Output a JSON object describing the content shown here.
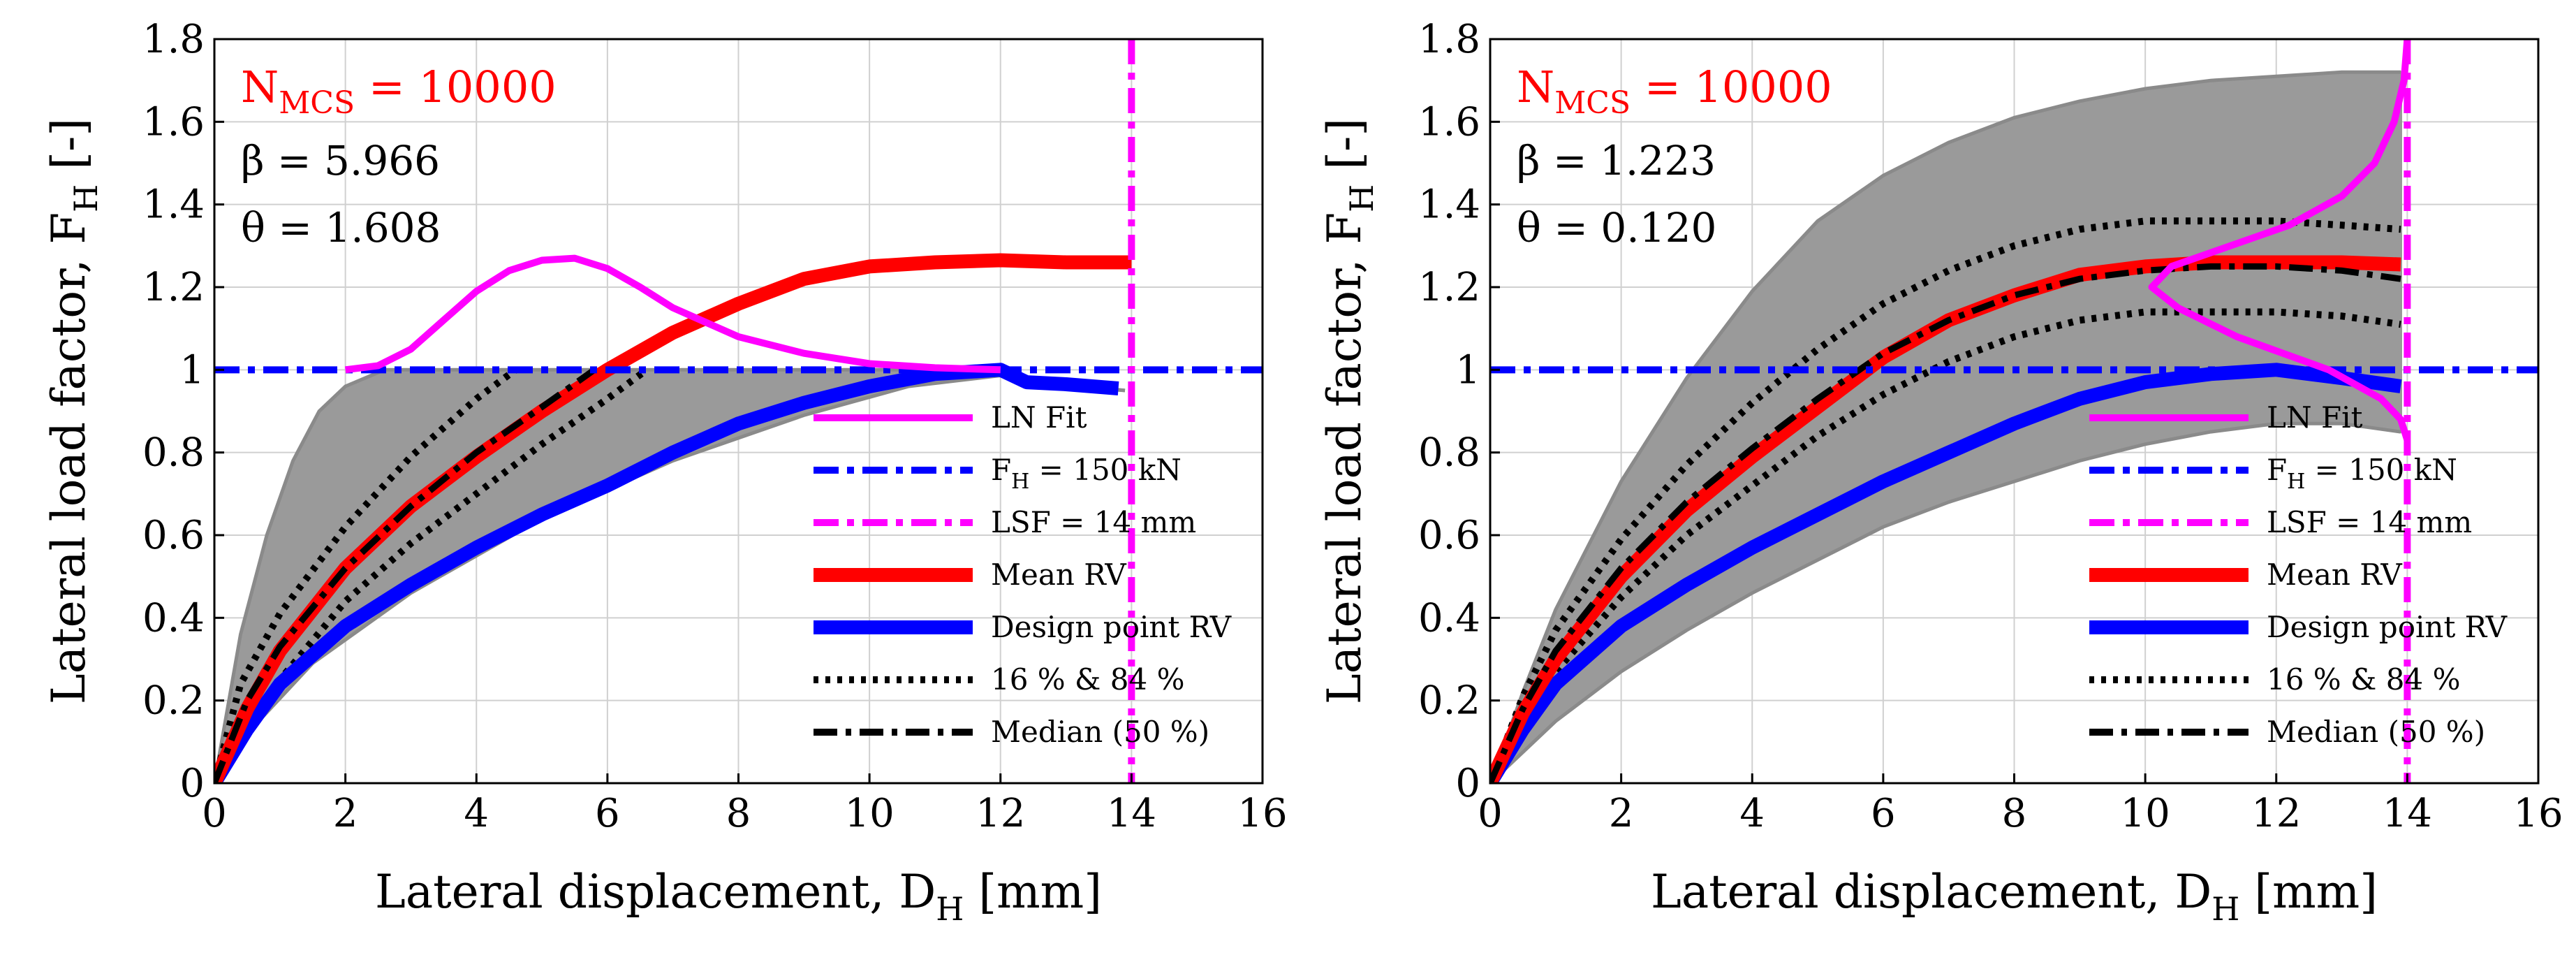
{
  "figure": {
    "subscript_H": "H",
    "subscript_MCS": "MCS"
  },
  "colors": {
    "mean": "#ff0000",
    "design": "#0000ff",
    "lnfit": "#ff00ff",
    "percentile": "#000000",
    "samples": "#9a9a9a",
    "grid": "#d0d0d0",
    "annotation": "#ff0000"
  },
  "chart_data": [
    {
      "type": "line",
      "panel": "left",
      "xlabel_main": "Lateral displacement, D",
      "xlabel_sub": "H",
      "xlabel_unit": " [mm]",
      "ylabel_main": "Lateral load factor, F",
      "ylabel_sub": "H",
      "ylabel_unit": " [-]",
      "xlim": [
        0,
        16
      ],
      "ylim": [
        0,
        1.8
      ],
      "xticks": [
        "0",
        "2",
        "4",
        "6",
        "8",
        "10",
        "12",
        "14",
        "16"
      ],
      "yticks": [
        "0",
        "0.2",
        "0.4",
        "0.6",
        "0.8",
        "1",
        "1.2",
        "1.4",
        "1.6",
        "1.8"
      ],
      "grid": true,
      "annotations": {
        "nmcs_main": "N",
        "nmcs_sub": "MCS",
        "nmcs_value": " = 10000",
        "beta": "β = 5.966",
        "theta": "θ = 1.608"
      },
      "legend": [
        {
          "key": "lnfit",
          "label": "LN Fit"
        },
        {
          "key": "fh",
          "label": "F",
          "sub": "H",
          "rest": " = 150 kN"
        },
        {
          "key": "lsf",
          "label": "LSF = 14 mm"
        },
        {
          "key": "mean",
          "label": "Mean RV"
        },
        {
          "key": "design",
          "label": "Design point RV"
        },
        {
          "key": "p1684",
          "label": "16 % & 84 %"
        },
        {
          "key": "median",
          "label": "Median (50 %)"
        }
      ],
      "reference_lines": {
        "fh": 1.0,
        "lsf": 14
      },
      "sample_band": {
        "upper": [
          [
            0,
            0
          ],
          [
            0.4,
            0.36
          ],
          [
            0.8,
            0.6
          ],
          [
            1.2,
            0.78
          ],
          [
            1.6,
            0.9
          ],
          [
            2.0,
            0.96
          ],
          [
            2.6,
            1.0
          ],
          [
            11,
            1.0
          ],
          [
            12,
            1.0
          ],
          [
            12.4,
            0.97
          ],
          [
            13.3,
            0.96
          ],
          [
            13.9,
            0.95
          ]
        ],
        "lower": [
          [
            13.9,
            0.95
          ],
          [
            13,
            0.96
          ],
          [
            12.2,
            0.99
          ],
          [
            10.6,
            0.96
          ],
          [
            9,
            0.89
          ],
          [
            7,
            0.78
          ],
          [
            5,
            0.64
          ],
          [
            3,
            0.46
          ],
          [
            1.5,
            0.29
          ],
          [
            0.5,
            0.12
          ],
          [
            0,
            0
          ]
        ]
      },
      "series": {
        "mean": [
          [
            0,
            0
          ],
          [
            0.5,
            0.18
          ],
          [
            1,
            0.32
          ],
          [
            2,
            0.52
          ],
          [
            3,
            0.67
          ],
          [
            4,
            0.79
          ],
          [
            5,
            0.9
          ],
          [
            6,
            1.0
          ],
          [
            7,
            1.09
          ],
          [
            8,
            1.16
          ],
          [
            9,
            1.22
          ],
          [
            10,
            1.25
          ],
          [
            11,
            1.26
          ],
          [
            12,
            1.265
          ],
          [
            13,
            1.26
          ],
          [
            14,
            1.26
          ]
        ],
        "design": [
          [
            0,
            0
          ],
          [
            0.5,
            0.13
          ],
          [
            1,
            0.24
          ],
          [
            2,
            0.38
          ],
          [
            3,
            0.48
          ],
          [
            4,
            0.57
          ],
          [
            5,
            0.65
          ],
          [
            6,
            0.72
          ],
          [
            7,
            0.8
          ],
          [
            8,
            0.87
          ],
          [
            9,
            0.92
          ],
          [
            10,
            0.96
          ],
          [
            11,
            0.99
          ],
          [
            12,
            1.0
          ],
          [
            12.4,
            0.97
          ],
          [
            13,
            0.965
          ],
          [
            13.8,
            0.955
          ]
        ],
        "median": [
          [
            0,
            0
          ],
          [
            0.5,
            0.2
          ],
          [
            1,
            0.33
          ],
          [
            2,
            0.52
          ],
          [
            3,
            0.67
          ],
          [
            4,
            0.8
          ],
          [
            5,
            0.91
          ],
          [
            5.8,
            1.0
          ]
        ],
        "p16": [
          [
            0,
            0
          ],
          [
            0.6,
            0.16
          ],
          [
            1,
            0.25
          ],
          [
            2,
            0.44
          ],
          [
            3,
            0.58
          ],
          [
            4,
            0.7
          ],
          [
            5,
            0.82
          ],
          [
            6,
            0.93
          ],
          [
            6.6,
            1.0
          ]
        ],
        "p84": [
          [
            0,
            0
          ],
          [
            0.4,
            0.24
          ],
          [
            1,
            0.41
          ],
          [
            2,
            0.62
          ],
          [
            3,
            0.79
          ],
          [
            4,
            0.93
          ],
          [
            4.6,
            1.0
          ]
        ],
        "lnfit": [
          [
            2,
            1.0
          ],
          [
            2.5,
            1.01
          ],
          [
            3,
            1.05
          ],
          [
            3.5,
            1.12
          ],
          [
            4,
            1.19
          ],
          [
            4.5,
            1.24
          ],
          [
            5,
            1.265
          ],
          [
            5.5,
            1.27
          ],
          [
            6,
            1.245
          ],
          [
            6.5,
            1.2
          ],
          [
            7,
            1.15
          ],
          [
            8,
            1.08
          ],
          [
            9,
            1.04
          ],
          [
            10,
            1.015
          ],
          [
            11,
            1.005
          ],
          [
            12,
            1.0
          ]
        ]
      }
    },
    {
      "type": "line",
      "panel": "right",
      "xlabel_main": "Lateral displacement, D",
      "xlabel_sub": "H",
      "xlabel_unit": " [mm]",
      "ylabel_main": "Lateral load factor, F",
      "ylabel_sub": "H",
      "ylabel_unit": " [-]",
      "xlim": [
        0,
        16
      ],
      "ylim": [
        0,
        1.8
      ],
      "xticks": [
        "0",
        "2",
        "4",
        "6",
        "8",
        "10",
        "12",
        "14",
        "16"
      ],
      "yticks": [
        "0",
        "0.2",
        "0.4",
        "0.6",
        "0.8",
        "1",
        "1.2",
        "1.4",
        "1.6",
        "1.8"
      ],
      "grid": true,
      "annotations": {
        "nmcs_main": "N",
        "nmcs_sub": "MCS",
        "nmcs_value": " = 10000",
        "beta": "β = 1.223",
        "theta": "θ = 0.120"
      },
      "legend": [
        {
          "key": "lnfit",
          "label": "LN Fit"
        },
        {
          "key": "fh",
          "label": "F",
          "sub": "H",
          "rest": " = 150 kN"
        },
        {
          "key": "lsf",
          "label": "LSF = 14 mm"
        },
        {
          "key": "mean",
          "label": "Mean RV"
        },
        {
          "key": "design",
          "label": "Design point RV"
        },
        {
          "key": "p1684",
          "label": "16 % & 84 %"
        },
        {
          "key": "median",
          "label": "Median (50 %)"
        }
      ],
      "reference_lines": {
        "fh": 1.0,
        "lsf": 14
      },
      "sample_band": {
        "upper": [
          [
            0,
            0
          ],
          [
            0.5,
            0.22
          ],
          [
            1,
            0.42
          ],
          [
            2,
            0.73
          ],
          [
            3,
            0.98
          ],
          [
            4,
            1.19
          ],
          [
            5,
            1.36
          ],
          [
            6,
            1.47
          ],
          [
            7,
            1.55
          ],
          [
            8,
            1.61
          ],
          [
            9,
            1.65
          ],
          [
            10,
            1.68
          ],
          [
            11,
            1.7
          ],
          [
            12,
            1.71
          ],
          [
            13,
            1.72
          ],
          [
            13.9,
            1.72
          ]
        ],
        "lower": [
          [
            13.9,
            0.85
          ],
          [
            13,
            0.87
          ],
          [
            12,
            0.87
          ],
          [
            11,
            0.85
          ],
          [
            10,
            0.82
          ],
          [
            9,
            0.78
          ],
          [
            8,
            0.73
          ],
          [
            7,
            0.68
          ],
          [
            6,
            0.62
          ],
          [
            5,
            0.54
          ],
          [
            4,
            0.46
          ],
          [
            3,
            0.37
          ],
          [
            2,
            0.27
          ],
          [
            1,
            0.15
          ],
          [
            0,
            0
          ]
        ]
      },
      "series": {
        "mean": [
          [
            0,
            0
          ],
          [
            0.5,
            0.17
          ],
          [
            1,
            0.3
          ],
          [
            2,
            0.5
          ],
          [
            3,
            0.66
          ],
          [
            4,
            0.79
          ],
          [
            5,
            0.91
          ],
          [
            6,
            1.03
          ],
          [
            7,
            1.12
          ],
          [
            8,
            1.18
          ],
          [
            9,
            1.23
          ],
          [
            10,
            1.25
          ],
          [
            11,
            1.26
          ],
          [
            12,
            1.26
          ],
          [
            13,
            1.26
          ],
          [
            13.9,
            1.255
          ]
        ],
        "design": [
          [
            0,
            0
          ],
          [
            0.5,
            0.13
          ],
          [
            1,
            0.24
          ],
          [
            2,
            0.38
          ],
          [
            3,
            0.48
          ],
          [
            4,
            0.57
          ],
          [
            5,
            0.65
          ],
          [
            6,
            0.73
          ],
          [
            7,
            0.8
          ],
          [
            8,
            0.87
          ],
          [
            9,
            0.93
          ],
          [
            10,
            0.97
          ],
          [
            11,
            0.99
          ],
          [
            12,
            1.0
          ],
          [
            13,
            0.98
          ],
          [
            13.9,
            0.96
          ]
        ],
        "median": [
          [
            0,
            0
          ],
          [
            0.5,
            0.18
          ],
          [
            1,
            0.32
          ],
          [
            2,
            0.52
          ],
          [
            3,
            0.68
          ],
          [
            4,
            0.81
          ],
          [
            5,
            0.93
          ],
          [
            6,
            1.04
          ],
          [
            7,
            1.12
          ],
          [
            8,
            1.18
          ],
          [
            9,
            1.22
          ],
          [
            10,
            1.24
          ],
          [
            11,
            1.25
          ],
          [
            12,
            1.25
          ],
          [
            13,
            1.24
          ],
          [
            13.9,
            1.22
          ]
        ],
        "p16": [
          [
            0,
            0
          ],
          [
            0.5,
            0.15
          ],
          [
            1,
            0.27
          ],
          [
            2,
            0.45
          ],
          [
            3,
            0.6
          ],
          [
            4,
            0.72
          ],
          [
            5,
            0.84
          ],
          [
            6,
            0.94
          ],
          [
            7,
            1.02
          ],
          [
            8,
            1.08
          ],
          [
            9,
            1.12
          ],
          [
            10,
            1.14
          ],
          [
            11,
            1.14
          ],
          [
            12,
            1.14
          ],
          [
            13,
            1.13
          ],
          [
            13.9,
            1.11
          ]
        ],
        "p84": [
          [
            0,
            0
          ],
          [
            0.5,
            0.21
          ],
          [
            1,
            0.37
          ],
          [
            2,
            0.59
          ],
          [
            3,
            0.77
          ],
          [
            4,
            0.92
          ],
          [
            5,
            1.05
          ],
          [
            6,
            1.16
          ],
          [
            7,
            1.24
          ],
          [
            8,
            1.3
          ],
          [
            9,
            1.34
          ],
          [
            10,
            1.36
          ],
          [
            11,
            1.36
          ],
          [
            12,
            1.36
          ],
          [
            13,
            1.35
          ],
          [
            13.9,
            1.34
          ]
        ],
        "lnfit_vertical": [
          [
            0.83,
            14.0
          ],
          [
            0.88,
            13.9
          ],
          [
            0.93,
            13.6
          ],
          [
            1.0,
            12.8
          ],
          [
            1.08,
            11.4
          ],
          [
            1.15,
            10.5
          ],
          [
            1.2,
            10.1
          ],
          [
            1.25,
            10.4
          ],
          [
            1.3,
            11.3
          ],
          [
            1.35,
            12.2
          ],
          [
            1.42,
            13.0
          ],
          [
            1.5,
            13.5
          ],
          [
            1.6,
            13.8
          ],
          [
            1.7,
            13.95
          ],
          [
            1.8,
            14.0
          ]
        ]
      }
    }
  ]
}
